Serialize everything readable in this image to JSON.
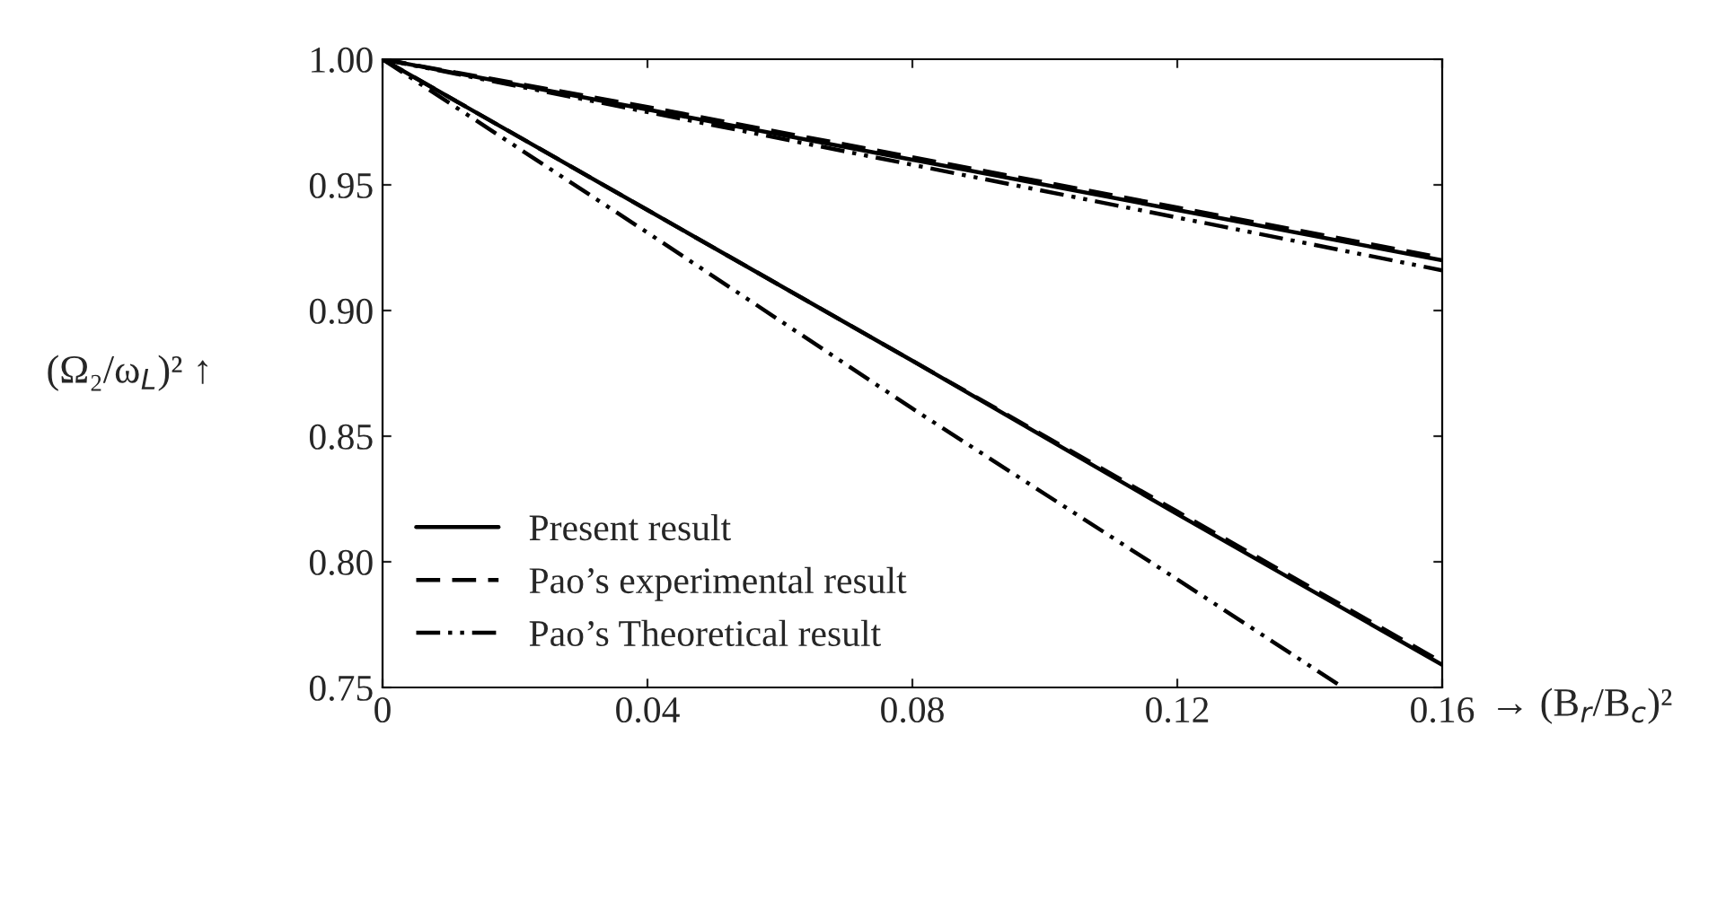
{
  "chart_data": {
    "type": "line",
    "x": [
      0,
      0.04,
      0.08,
      0.12,
      0.16
    ],
    "series": [
      {
        "name": "Present result",
        "color": "#000000",
        "line_style": "solid",
        "values": [
          1.0,
          0.94,
          0.88,
          0.819,
          0.759
        ]
      },
      {
        "name": "Pao’s experimental result",
        "color": "#000000",
        "line_style": "dashed",
        "values": [
          1.0,
          0.94,
          0.88,
          0.82,
          0.76
        ]
      },
      {
        "name": "Pao’s Theoretical result",
        "color": "#000000",
        "line_style": "dashdot",
        "x": [
          0,
          0.04,
          0.08,
          0.12,
          0.145
        ],
        "values": [
          1.0,
          0.931,
          0.861,
          0.793,
          0.75
        ]
      },
      {
        "color": "#000000",
        "line_style": "solid",
        "values": [
          1.0,
          0.98,
          0.96,
          0.94,
          0.92
        ]
      },
      {
        "color": "#000000",
        "line_style": "dashed",
        "values": [
          1.0,
          0.981,
          0.961,
          0.941,
          0.921
        ]
      },
      {
        "color": "#000000",
        "line_style": "dashdot",
        "values": [
          1.0,
          0.979,
          0.958,
          0.937,
          0.916
        ]
      }
    ],
    "xlabel": "→ (B$_{r}$/B$_{c}$)²",
    "ylabel": "(Ω₂/ω$_{L}$)² ↑",
    "xlim": [
      0,
      0.16
    ],
    "xticks": [
      0,
      0.04,
      0.08,
      0.12,
      0.16
    ],
    "ylim": [
      0.75,
      1.0
    ],
    "yticks": [
      {
        "value": 0.75,
        "label": "0.75"
      },
      {
        "value": 0.8,
        "label": "0.80"
      },
      {
        "value": 0.85,
        "label": "0.85"
      },
      {
        "value": 0.9,
        "label": "0.90"
      },
      {
        "value": 0.95,
        "label": "0.95"
      },
      {
        "value": 1.0,
        "label": "1.00"
      }
    ],
    "grid": false,
    "legend": "bottom left"
  }
}
